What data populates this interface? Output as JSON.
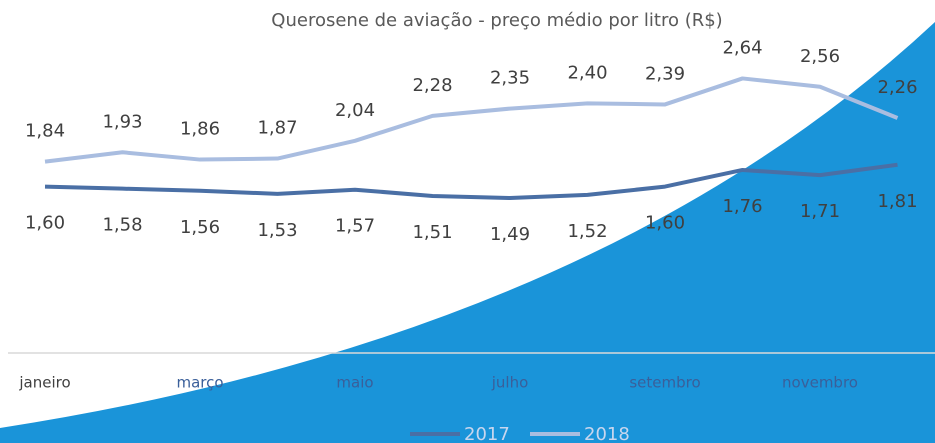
{
  "chart_data": {
    "type": "line",
    "title": "Querosene de aviação - preço médio por litro (R$)",
    "categories": [
      "janeiro",
      null,
      "março",
      null,
      "maio",
      null,
      "julho",
      null,
      "setembro",
      null,
      "novembro",
      null
    ],
    "series": [
      {
        "name": "2017",
        "color": "#4a6fa5",
        "values": [
          1.6,
          1.58,
          1.56,
          1.53,
          1.57,
          1.51,
          1.49,
          1.52,
          1.6,
          1.76,
          1.71,
          1.81
        ],
        "value_labels": [
          "1,60",
          "1,58",
          "1,56",
          "1,53",
          "1,57",
          "1,51",
          "1,49",
          "1,52",
          "1,60",
          "1,76",
          "1,71",
          "1,81"
        ]
      },
      {
        "name": "2018",
        "color": "#a9bde0",
        "values": [
          1.84,
          1.93,
          1.86,
          1.87,
          2.04,
          2.28,
          2.35,
          2.4,
          2.39,
          2.64,
          2.56,
          2.26
        ],
        "value_labels": [
          "1,84",
          "1,93",
          "1,86",
          "1,87",
          "2,04",
          "2,28",
          "2,35",
          "2,40",
          "2,39",
          "2,64",
          "2,56",
          "2,26"
        ]
      }
    ]
  }
}
